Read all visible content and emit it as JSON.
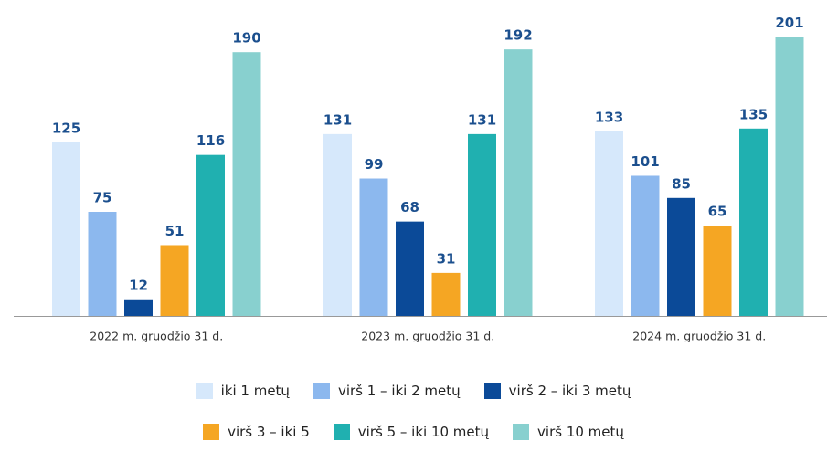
{
  "chart_data": {
    "type": "bar",
    "categories": [
      "2022 m. gruodžio 31 d.",
      "2023 m. gruodžio 31 d.",
      "2024 m. gruodžio 31 d."
    ],
    "series": [
      {
        "name": "iki 1 metų",
        "color": "#d6e8fb",
        "values": [
          125,
          131,
          133
        ]
      },
      {
        "name": "virš 1 – iki 2 metų",
        "color": "#8cb8ee",
        "values": [
          75,
          99,
          101
        ]
      },
      {
        "name": "virš 2 – iki 3 metų",
        "color": "#0b4a98",
        "values": [
          12,
          68,
          85
        ]
      },
      {
        "name": "virš 3 – iki 5",
        "color": "#f5a623",
        "values": [
          51,
          31,
          65
        ]
      },
      {
        "name": "virš 5 – iki 10 metų",
        "color": "#20b0b0",
        "values": [
          116,
          131,
          135
        ]
      },
      {
        "name": "virš 10 metų",
        "color": "#88d0cf",
        "values": [
          190,
          192,
          201
        ]
      }
    ]
  }
}
